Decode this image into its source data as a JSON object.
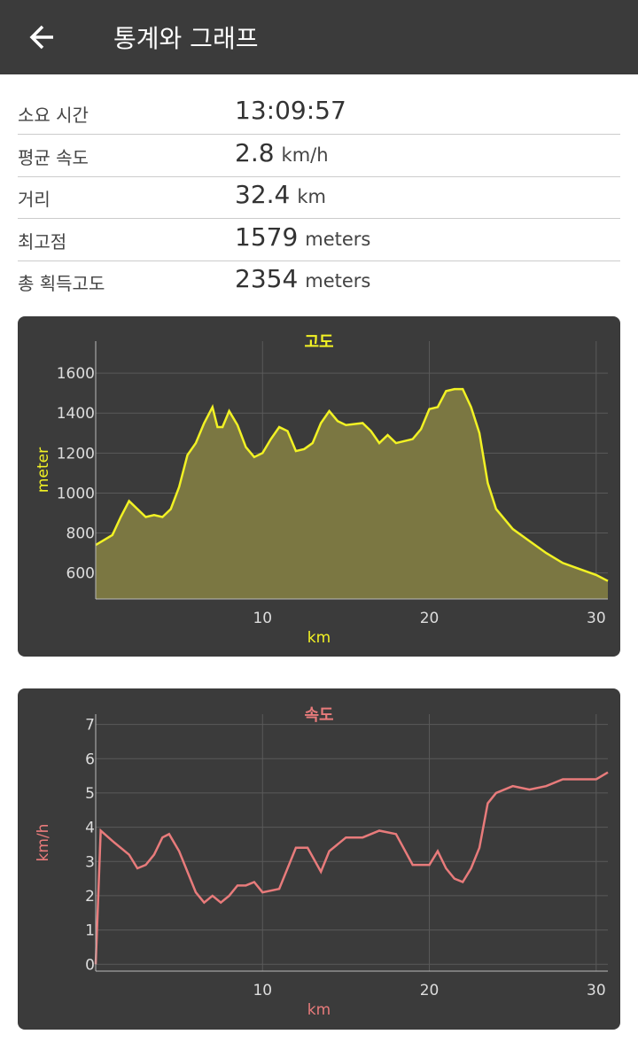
{
  "header": {
    "title": "통계와 그래프"
  },
  "stats": [
    {
      "label": "소요 시간",
      "value": "13:09:57"
    },
    {
      "label": "평균 속도",
      "value": 2.8,
      "unit": "km/h"
    },
    {
      "label": "거리",
      "value": 32.4,
      "unit": "km"
    },
    {
      "label": "최고점",
      "value": 1579,
      "unit": "meters"
    },
    {
      "label": "총 획득고도",
      "value": 2354,
      "unit": "meters"
    }
  ],
  "chart_data": [
    {
      "type": "area",
      "title": "고도",
      "x_label": "km",
      "y_label": "meter",
      "color": "#f2f224",
      "fill": "#7b7742",
      "x": [
        0,
        1,
        1.5,
        2,
        3,
        3.5,
        4,
        4.5,
        5,
        5.5,
        6,
        6.5,
        7,
        7.3,
        7.6,
        8,
        8.5,
        9,
        9.5,
        10,
        10.5,
        11,
        11.5,
        12,
        12.5,
        13,
        13.5,
        14,
        14.5,
        15,
        16,
        16.5,
        17,
        17.5,
        18,
        18.5,
        19,
        19.5,
        20,
        20.5,
        21,
        21.5,
        22,
        22.5,
        23,
        23.5,
        24,
        25,
        26,
        27,
        28,
        29,
        30,
        30.7
      ],
      "values": [
        740,
        790,
        880,
        960,
        880,
        890,
        880,
        920,
        1030,
        1190,
        1250,
        1350,
        1430,
        1330,
        1330,
        1410,
        1340,
        1230,
        1180,
        1200,
        1270,
        1330,
        1310,
        1210,
        1220,
        1250,
        1350,
        1410,
        1360,
        1340,
        1350,
        1310,
        1250,
        1290,
        1250,
        1260,
        1270,
        1320,
        1420,
        1430,
        1510,
        1520,
        1520,
        1430,
        1300,
        1050,
        920,
        820,
        760,
        700,
        650,
        620,
        590,
        560
      ],
      "xlim": [
        0,
        30.7
      ],
      "ylim": [
        470,
        1760
      ],
      "xticks": [
        10,
        20,
        30
      ],
      "yticks": [
        600,
        800,
        1000,
        1200,
        1400,
        1600
      ],
      "grid": true
    },
    {
      "type": "line",
      "title": "속도",
      "x_label": "km",
      "y_label": "km/h",
      "color": "#e87b7b",
      "x": [
        0,
        0.3,
        1,
        2,
        2.5,
        3,
        3.5,
        4,
        4.4,
        5,
        5.5,
        6,
        6.5,
        7,
        7.5,
        8,
        8.5,
        9,
        9.5,
        10,
        11,
        12,
        12.7,
        13.5,
        14,
        15,
        16,
        17,
        18,
        19,
        20,
        20.5,
        21,
        21.5,
        22,
        22.5,
        23,
        23.5,
        24,
        25,
        26,
        27,
        28,
        29,
        30,
        30.7
      ],
      "values": [
        0,
        3.9,
        3.6,
        3.2,
        2.8,
        2.9,
        3.2,
        3.7,
        3.8,
        3.3,
        2.7,
        2.1,
        1.8,
        2,
        1.8,
        2,
        2.3,
        2.3,
        2.4,
        2.1,
        2.2,
        3.4,
        3.4,
        2.7,
        3.3,
        3.7,
        3.7,
        3.9,
        3.8,
        2.9,
        2.9,
        3.3,
        2.8,
        2.5,
        2.4,
        2.8,
        3.4,
        4.7,
        5,
        5.2,
        5.1,
        5.2,
        5.4,
        5.4,
        5.4,
        5.6
      ],
      "xlim": [
        0,
        30.7
      ],
      "ylim": [
        -0.2,
        7.3
      ],
      "xticks": [
        10,
        20,
        30
      ],
      "yticks": [
        0,
        1,
        2,
        3,
        4,
        5,
        6,
        7
      ],
      "grid": true
    }
  ]
}
